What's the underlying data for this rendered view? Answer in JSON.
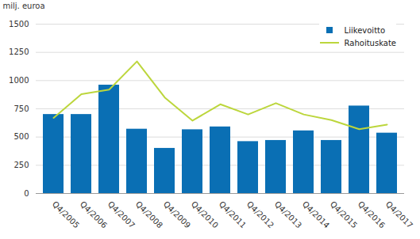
{
  "chart_data": {
    "type": "bar",
    "categories": [
      "Q4/2005",
      "Q4/2006",
      "Q4/2007",
      "Q4/2008",
      "Q4/2009",
      "Q4/2010",
      "Q4/2011",
      "Q4/2012",
      "Q4/2013",
      "Q4/2014",
      "Q4/2015",
      "Q4/2016",
      "Q4/2017"
    ],
    "series": [
      {
        "name": "Liikevoitto",
        "type": "bar",
        "color": "#0a6fb4",
        "values": [
          700,
          700,
          960,
          570,
          400,
          565,
          590,
          460,
          470,
          555,
          470,
          775,
          535
        ]
      },
      {
        "name": "Rahoituskate",
        "type": "line",
        "color": "#bcd63c",
        "values": [
          670,
          880,
          920,
          1170,
          850,
          645,
          790,
          700,
          800,
          700,
          650,
          570,
          610
        ]
      }
    ],
    "y_label": "milj. euroa",
    "ylim": [
      0,
      1500
    ],
    "yticks": [
      0,
      250,
      500,
      750,
      1000,
      1250,
      1500
    ],
    "grid": true,
    "legend": "top-right"
  }
}
